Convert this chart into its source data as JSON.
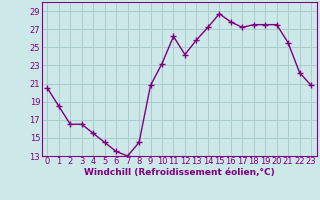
{
  "x": [
    0,
    1,
    2,
    3,
    4,
    5,
    6,
    7,
    8,
    9,
    10,
    11,
    12,
    13,
    14,
    15,
    16,
    17,
    18,
    19,
    20,
    21,
    22,
    23
  ],
  "y": [
    20.5,
    18.5,
    16.5,
    16.5,
    15.5,
    14.5,
    13.5,
    13.0,
    14.5,
    20.8,
    23.2,
    26.2,
    24.2,
    25.8,
    27.2,
    28.7,
    27.8,
    27.2,
    27.5,
    27.5,
    27.5,
    25.5,
    22.2,
    20.8
  ],
  "line_color": "#800080",
  "marker": "+",
  "marker_size": 4,
  "background_color": "#cce8e8",
  "grid_color": "#aacccc",
  "xlabel": "Windchill (Refroidissement éolien,°C)",
  "xlabel_fontsize": 6.5,
  "ylim": [
    13,
    30
  ],
  "xlim": [
    -0.5,
    23.5
  ],
  "yticks": [
    13,
    15,
    17,
    19,
    21,
    23,
    25,
    27,
    29
  ],
  "xticks": [
    0,
    1,
    2,
    3,
    4,
    5,
    6,
    7,
    8,
    9,
    10,
    11,
    12,
    13,
    14,
    15,
    16,
    17,
    18,
    19,
    20,
    21,
    22,
    23
  ],
  "tick_fontsize": 6,
  "line_width": 1.0
}
